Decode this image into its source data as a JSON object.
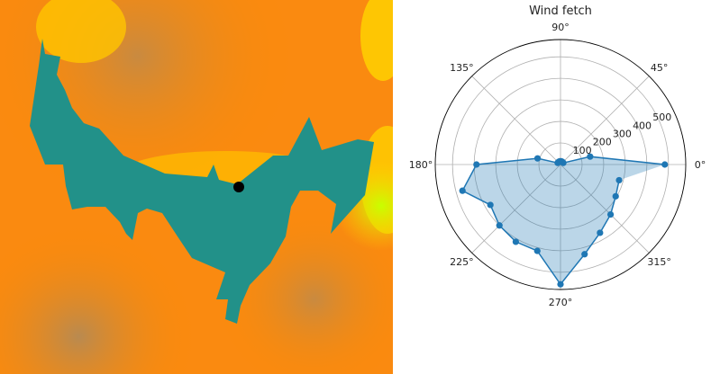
{
  "map": {
    "lake_color": "#229189",
    "terrain_colors": [
      "#ff8c00",
      "#ffb000",
      "#ffd400",
      "#c98a40",
      "#c8ff00"
    ],
    "marker_color": "#000000"
  },
  "chart_data": {
    "type": "polar-line-area",
    "title": "Wind fetch",
    "theta_unit": "degrees",
    "theta": [
      0,
      15,
      30,
      45,
      60,
      75,
      90,
      105,
      120,
      135,
      150,
      165,
      180,
      195,
      210,
      225,
      240,
      255,
      270,
      285,
      300,
      315,
      330,
      345
    ],
    "r": [
      483,
      142,
      15,
      15,
      15,
      15,
      15,
      15,
      15,
      15,
      15,
      110,
      389,
      470,
      375,
      400,
      414,
      415,
      556,
      431,
      366,
      328,
      295,
      281
    ],
    "rlim": [
      0,
      580
    ],
    "r_ticks": [
      "100",
      "200",
      "300",
      "400",
      "500"
    ],
    "r_tick_values": [
      100,
      200,
      300,
      400,
      500
    ],
    "theta_ticks": [
      "0°",
      "45°",
      "90°",
      "135°",
      "180°",
      "225°",
      "270°",
      "315°"
    ],
    "theta_tick_values": [
      0,
      45,
      90,
      135,
      180,
      225,
      270,
      315
    ],
    "grid": true,
    "line_color": "#1f77b4",
    "fill_color": "#1f77b4",
    "fill_alpha": 0.3
  }
}
